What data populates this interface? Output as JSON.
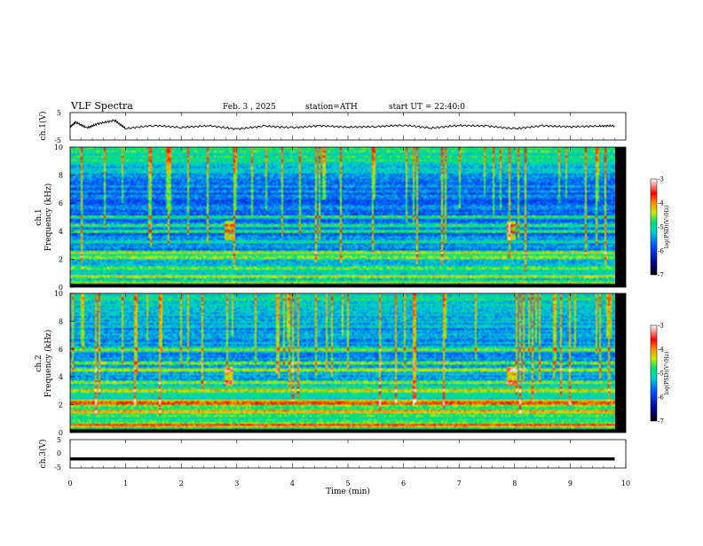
{
  "header": {
    "title": "VLF Spectra",
    "date": "Feb. 3  , 2025",
    "station": "station=ATH",
    "start": "start UT =  22:40:0"
  },
  "chart_data": [
    {
      "type": "line",
      "panel": "ch1-waveform",
      "ylabel": "ch.1(V)",
      "ylim": [
        -5,
        5
      ],
      "yticks": [
        "5",
        "-5"
      ],
      "x": [
        0,
        0.1,
        0.3,
        0.5,
        0.8,
        1.0,
        1.5,
        2.0,
        2.5,
        3.0,
        3.5,
        4.0,
        4.5,
        5.0,
        5.5,
        6.0,
        6.5,
        7.0,
        7.5,
        8.0,
        8.5,
        9.0,
        9.5,
        9.8
      ],
      "y": [
        -0.3,
        1.5,
        -0.6,
        0.9,
        2.2,
        -0.8,
        0.3,
        -0.4,
        0.2,
        -1.0,
        0.1,
        -0.5,
        0.2,
        -0.3,
        -0.1,
        0.4,
        -0.6,
        0.3,
        0.1,
        -0.9,
        0.2,
        -0.2,
        0.1,
        0.2
      ]
    },
    {
      "type": "heatmap",
      "panel": "ch1-spectrogram",
      "ylabel": "Frequency (kHz)",
      "channel_label": "ch.1",
      "ylim": [
        0,
        10
      ],
      "yticks": [
        "0",
        "2",
        "4",
        "6",
        "8",
        "10"
      ],
      "colorbar": {
        "label": "log(PSD)(V²/Hz)",
        "range": [
          -7,
          -3
        ],
        "ticks": [
          "-3",
          "-4",
          "-5",
          "-6",
          "-7"
        ]
      },
      "bands_khz": [
        0.3,
        0.7,
        1.3,
        2.1,
        2.4,
        3.2,
        4.0,
        4.4,
        5.0
      ],
      "bursts_min": [
        2.85,
        7.95
      ]
    },
    {
      "type": "heatmap",
      "panel": "ch2-spectrogram",
      "ylabel": "Frequency (kHz)",
      "channel_label": "ch.2",
      "ylim": [
        0,
        10
      ],
      "yticks": [
        "0",
        "2",
        "4",
        "6",
        "8",
        "10"
      ],
      "colorbar": {
        "label": "log(PSD)(V²/Hz)",
        "range": [
          -7,
          -3
        ],
        "ticks": [
          "-3",
          "-4",
          "-5",
          "-6",
          "-7"
        ]
      },
      "bands_khz": [
        0.5,
        1.5,
        2.0,
        2.2,
        3.0,
        3.6,
        4.5,
        5.0,
        6.0
      ],
      "bursts_min": [
        2.85,
        7.95
      ]
    },
    {
      "type": "line",
      "panel": "ch3-waveform",
      "ylabel": "ch.3(V)",
      "ylim": [
        -5,
        5
      ],
      "yticks": [
        "5",
        "0",
        "-5"
      ],
      "x": [
        0,
        9.8
      ],
      "y": [
        -1.8,
        -1.8
      ]
    }
  ],
  "x_axis": {
    "label": "Time (min)",
    "range": [
      0,
      10
    ],
    "ticks": [
      "0",
      "1",
      "2",
      "3",
      "4",
      "5",
      "6",
      "7",
      "8",
      "9",
      "10"
    ]
  },
  "colors": {
    "axis": "#000000",
    "spectro_low": "#000044",
    "spectro_mid": "#00ddaa",
    "spectro_high": "#ff0000"
  }
}
